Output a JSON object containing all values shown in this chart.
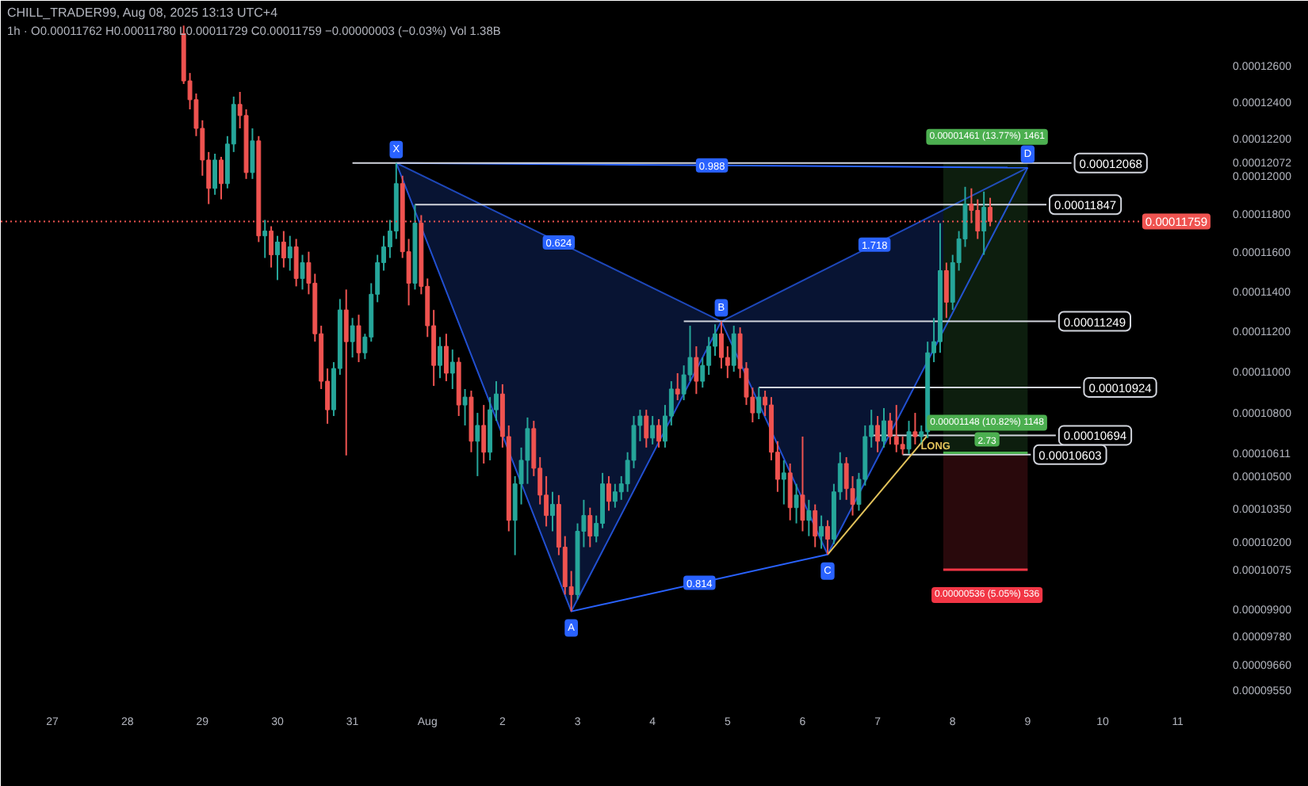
{
  "chart_data": {
    "type": "candlestick",
    "title": "CHILL_TRADER99, Aug 08, 2025 13:13 UTC+4",
    "subtitle": "1h · O0.00011762 H0.00011780 L0.00011729 C0.00011759 −0.00000003 (−0.03%) Vol 1.38B",
    "x": [
      "2025-07-28T18:00",
      "2025-07-28T20:00",
      "2025-07-28T22:00",
      "2025-07-29T00:00",
      "2025-07-29T02:00",
      "2025-07-29T04:00",
      "2025-07-29T06:00",
      "2025-07-29T08:00",
      "2025-07-29T10:00",
      "2025-07-29T12:00",
      "2025-07-29T14:00",
      "2025-07-29T16:00",
      "2025-07-29T18:00",
      "2025-07-29T20:00",
      "2025-07-29T22:00",
      "2025-07-30T00:00",
      "2025-07-30T02:00",
      "2025-07-30T04:00",
      "2025-07-30T06:00",
      "2025-07-30T08:00",
      "2025-07-30T10:00",
      "2025-07-30T12:00",
      "2025-07-30T14:00",
      "2025-07-30T16:00",
      "2025-07-30T18:00",
      "2025-07-30T20:00",
      "2025-07-30T22:00",
      "2025-07-31T00:00",
      "2025-07-31T02:00",
      "2025-07-31T04:00",
      "2025-07-31T06:00",
      "2025-07-31T08:00",
      "2025-07-31T10:00",
      "2025-07-31T12:00",
      "2025-07-31T14:00",
      "2025-07-31T16:00",
      "2025-07-31T18:00",
      "2025-07-31T20:00",
      "2025-07-31T22:00",
      "2025-08-01T00:00",
      "2025-08-01T02:00",
      "2025-08-01T04:00",
      "2025-08-01T06:00",
      "2025-08-01T08:00",
      "2025-08-01T10:00",
      "2025-08-01T12:00",
      "2025-08-01T14:00",
      "2025-08-01T16:00",
      "2025-08-01T18:00",
      "2025-08-01T20:00",
      "2025-08-01T22:00",
      "2025-08-02T00:00",
      "2025-08-02T02:00",
      "2025-08-02T04:00",
      "2025-08-02T06:00",
      "2025-08-02T08:00",
      "2025-08-02T10:00",
      "2025-08-02T12:00",
      "2025-08-02T14:00",
      "2025-08-02T16:00",
      "2025-08-02T18:00",
      "2025-08-02T20:00",
      "2025-08-02T22:00",
      "2025-08-03T00:00",
      "2025-08-03T02:00",
      "2025-08-03T04:00",
      "2025-08-03T06:00",
      "2025-08-03T08:00",
      "2025-08-03T10:00",
      "2025-08-03T12:00",
      "2025-08-03T14:00",
      "2025-08-03T16:00",
      "2025-08-03T18:00",
      "2025-08-03T20:00",
      "2025-08-03T22:00",
      "2025-08-04T00:00",
      "2025-08-04T02:00",
      "2025-08-04T04:00",
      "2025-08-04T06:00",
      "2025-08-04T08:00",
      "2025-08-04T10:00",
      "2025-08-04T12:00",
      "2025-08-04T14:00",
      "2025-08-04T16:00",
      "2025-08-04T18:00",
      "2025-08-04T20:00",
      "2025-08-04T22:00",
      "2025-08-05T00:00",
      "2025-08-05T02:00",
      "2025-08-05T04:00",
      "2025-08-05T06:00",
      "2025-08-05T08:00",
      "2025-08-05T10:00",
      "2025-08-05T12:00",
      "2025-08-05T14:00",
      "2025-08-05T16:00",
      "2025-08-05T18:00",
      "2025-08-05T20:00",
      "2025-08-05T22:00",
      "2025-08-06T00:00",
      "2025-08-06T02:00",
      "2025-08-06T04:00",
      "2025-08-06T06:00",
      "2025-08-06T08:00",
      "2025-08-06T10:00",
      "2025-08-06T12:00",
      "2025-08-06T14:00",
      "2025-08-06T16:00",
      "2025-08-06T18:00",
      "2025-08-06T20:00",
      "2025-08-06T22:00",
      "2025-08-07T00:00",
      "2025-08-07T02:00",
      "2025-08-07T04:00",
      "2025-08-07T06:00",
      "2025-08-07T08:00",
      "2025-08-07T10:00",
      "2025-08-07T12:00",
      "2025-08-07T14:00",
      "2025-08-07T16:00",
      "2025-08-07T18:00",
      "2025-08-07T20:00",
      "2025-08-07T22:00",
      "2025-08-08T00:00",
      "2025-08-08T02:00",
      "2025-08-08T04:00",
      "2025-08-08T06:00",
      "2025-08-08T08:00",
      "2025-08-08T10:00",
      "2025-08-08T12:00"
    ],
    "ohlc": [
      [
        0.00012782,
        0.00012827,
        0.00012499,
        0.00012516
      ],
      [
        0.00012516,
        0.0001256,
        0.00012359,
        0.00012412
      ],
      [
        0.00012412,
        0.00012446,
        0.00012213,
        0.00012255
      ],
      [
        0.00012255,
        0.00012299,
        0.00012,
        0.00012084
      ],
      [
        0.00012084,
        0.00012127,
        0.0001185,
        0.00011933
      ],
      [
        0.00011933,
        0.00012118,
        0.00011899,
        0.00012084
      ],
      [
        0.00012084,
        0.00012101,
        0.00011875,
        0.00011958
      ],
      [
        0.00011958,
        0.00012213,
        0.00011933,
        0.0001217
      ],
      [
        0.0001217,
        0.00012429,
        0.00012127,
        0.00012386
      ],
      [
        0.00012386,
        0.00012455,
        0.00012255,
        0.00012325
      ],
      [
        0.00012325,
        0.00012359,
        0.00011983,
        0.00012017
      ],
      [
        0.00012017,
        0.00012255,
        0.00011983,
        0.00012187
      ],
      [
        0.00012187,
        0.00012213,
        0.00011652,
        0.00011684
      ],
      [
        0.00011684,
        0.00011767,
        0.0001157,
        0.00011709
      ],
      [
        0.00011709,
        0.00011734,
        0.00011521,
        0.00011586
      ],
      [
        0.00011586,
        0.00011684,
        0.00011457,
        0.00011652
      ],
      [
        0.00011652,
        0.00011709,
        0.00011521,
        0.0001157
      ],
      [
        0.0001157,
        0.00011684,
        0.00011505,
        0.00011627
      ],
      [
        0.00011627,
        0.00011668,
        0.00011425,
        0.00011465
      ],
      [
        0.00011465,
        0.00011586,
        0.00011409,
        0.00011546
      ],
      [
        0.00011546,
        0.00011602,
        0.00011385,
        0.00011441
      ],
      [
        0.00011441,
        0.00011489,
        0.00011148,
        0.00011187
      ],
      [
        0.00011187,
        0.00011227,
        0.00010916,
        0.00010954
      ],
      [
        0.00010954,
        0.00011016,
        0.00010749,
        0.00010816
      ],
      [
        0.00010816,
        0.00011047,
        0.00010786,
        0.00011016
      ],
      [
        0.00011016,
        0.00011361,
        0.00010985,
        0.00011306
      ],
      [
        0.00011306,
        0.00011409,
        0.00010599,
        0.00011148
      ],
      [
        0.00011148,
        0.00011266,
        0.0001107,
        0.00011227
      ],
      [
        0.00011227,
        0.00011282,
        0.00011047,
        0.00011093
      ],
      [
        0.00011093,
        0.00011187,
        0.00011062,
        0.00011171
      ],
      [
        0.00011171,
        0.00011441,
        0.00011148,
        0.00011385
      ],
      [
        0.00011385,
        0.00011586,
        0.00011345,
        0.00011546
      ],
      [
        0.00011546,
        0.00011684,
        0.00011505,
        0.00011627
      ],
      [
        0.00011627,
        0.00011767,
        0.0001157,
        0.00011709
      ],
      [
        0.00011709,
        0.00012068,
        0.00011668,
        0.00011958
      ],
      [
        0.00011958,
        0.00012,
        0.0001157,
        0.00011602
      ],
      [
        0.00011602,
        0.00011668,
        0.00011329,
        0.00011441
      ],
      [
        0.00011441,
        0.00011847,
        0.00011409,
        0.0001175
      ],
      [
        0.0001175,
        0.00011792,
        0.00011385,
        0.00011425
      ],
      [
        0.00011425,
        0.00011465,
        0.00011171,
        0.00011227
      ],
      [
        0.00011227,
        0.00011306,
        0.00010931,
        0.00011031
      ],
      [
        0.00011031,
        0.00011171,
        0.00010969,
        0.00011125
      ],
      [
        0.00011125,
        0.00011187,
        0.00010954,
        0.00010993
      ],
      [
        0.00010993,
        0.00011109,
        0.00010916,
        0.00011047
      ],
      [
        0.00011047,
        0.0001107,
        0.00010786,
        0.00010839
      ],
      [
        0.00010839,
        0.00010916,
        0.00010741,
        0.00010877
      ],
      [
        0.00010877,
        0.00010908,
        0.00010614,
        0.00010666
      ],
      [
        0.00010666,
        0.00010801,
        0.00010502,
        0.00010741
      ],
      [
        0.00010741,
        0.00010839,
        0.00010561,
        0.00010614
      ],
      [
        0.00010614,
        0.00010877,
        0.00010576,
        0.00010816
      ],
      [
        0.00010816,
        0.00010954,
        0.00010763,
        0.00010892
      ],
      [
        0.00010892,
        0.00010939,
        0.00010636,
        0.00010688
      ],
      [
        0.00010688,
        0.00010741,
        0.00010248,
        0.00010298
      ],
      [
        0.00010298,
        0.00010502,
        0.0001014,
        0.00010466
      ],
      [
        0.00010466,
        0.00010636,
        0.00010371,
        0.00010576
      ],
      [
        0.00010576,
        0.00010779,
        0.00010466,
        0.00010726
      ],
      [
        0.00010726,
        0.00010763,
        0.00010502,
        0.00010539
      ],
      [
        0.00010539,
        0.00010591,
        0.00010371,
        0.00010414
      ],
      [
        0.00010414,
        0.00010502,
        0.0001027,
        0.0001032
      ],
      [
        0.0001032,
        0.00010429,
        0.00010248,
        0.00010371
      ],
      [
        0.00010371,
        0.00010414,
        0.0001014,
        0.00010176
      ],
      [
        0.00010176,
        0.00010226,
        9.964e-05,
        9.999e-05
      ],
      [
        9.999e-05,
        0.00010069,
        9.89e-05,
        9.964e-05
      ],
      [
        9.964e-05,
        0.00010284,
        9.943e-05,
        0.00010248
      ],
      [
        0.00010248,
        0.00010392,
        0.00010176,
        0.0001032
      ],
      [
        0.0001032,
        0.00010356,
        0.00010176,
        0.00010226
      ],
      [
        0.00010226,
        0.0001032,
        0.00010198,
        0.00010284
      ],
      [
        0.00010284,
        0.00010517,
        0.00010262,
        0.00010466
      ],
      [
        0.00010466,
        0.00010502,
        0.00010342,
        0.00010385
      ],
      [
        0.00010385,
        0.00010466,
        0.00010356,
        0.00010429
      ],
      [
        0.00010429,
        0.00010502,
        0.00010392,
        0.00010466
      ],
      [
        0.00010466,
        0.00010614,
        0.00010429,
        0.00010576
      ],
      [
        0.00010576,
        0.00010786,
        0.00010539,
        0.00010741
      ],
      [
        0.00010741,
        0.00010816,
        0.00010666,
        0.00010786
      ],
      [
        0.00010786,
        0.00010816,
        0.00010636,
        0.00010681
      ],
      [
        0.00010681,
        0.00010786,
        0.00010651,
        0.00010741
      ],
      [
        0.00010741,
        0.00010771,
        0.00010636,
        0.00010666
      ],
      [
        0.00010666,
        0.00010839,
        0.00010636,
        0.00010786
      ],
      [
        0.00010786,
        0.00010954,
        0.00010741,
        0.00010916
      ],
      [
        0.00010916,
        0.00010993,
        0.00010862,
        0.00010892
      ],
      [
        0.00010892,
        0.00011031,
        0.00010862,
        0.00010985
      ],
      [
        0.00010985,
        0.00011227,
        0.00010954,
        0.0001107
      ],
      [
        0.0001107,
        0.00011125,
        0.00010892,
        0.00010954
      ],
      [
        0.00010954,
        0.0001107,
        0.00010923,
        0.00011031
      ],
      [
        0.00011031,
        0.00011171,
        0.00010985,
        0.00011125
      ],
      [
        0.00011125,
        0.00011234,
        0.00011078,
        0.00011187
      ],
      [
        0.00011187,
        0.00011249,
        0.00011016,
        0.0001107
      ],
      [
        0.0001107,
        0.00011125,
        0.00010969,
        0.00011031
      ],
      [
        0.00011031,
        0.00011227,
        0.00011,
        0.00011187
      ],
      [
        0.00011187,
        0.00011219,
        0.00010969,
        0.00011016
      ],
      [
        0.00011016,
        0.00011047,
        0.00010839,
        0.00010877
      ],
      [
        0.00010877,
        0.00010923,
        0.00010756,
        0.00010801
      ],
      [
        0.00010801,
        0.00010924,
        0.00010771,
        0.00010877
      ],
      [
        0.00010877,
        0.00010908,
        0.00010786,
        0.00010839
      ],
      [
        0.00010839,
        0.00010877,
        0.00010576,
        0.00010614
      ],
      [
        0.00010614,
        0.00010666,
        0.00010429,
        0.00010487
      ],
      [
        0.00010487,
        0.00010576,
        0.00010371,
        0.00010517
      ],
      [
        0.00010517,
        0.00010561,
        0.00010298,
        0.00010356
      ],
      [
        0.00010356,
        0.00010466,
        0.00010284,
        0.00010414
      ],
      [
        0.00010414,
        0.00010688,
        0.00010248,
        0.00010298
      ],
      [
        0.00010298,
        0.00010392,
        0.00010226,
        0.00010342
      ],
      [
        0.00010342,
        0.00010371,
        0.00010176,
        0.00010226
      ],
      [
        0.00010226,
        0.0001032,
        0.00010169,
        0.0001027
      ],
      [
        0.0001027,
        0.00010298,
        0.00010143,
        0.00010212
      ],
      [
        0.00010212,
        0.00010466,
        0.0001019,
        0.00010429
      ],
      [
        0.00010429,
        0.00010614,
        0.00010392,
        0.00010561
      ],
      [
        0.00010561,
        0.00010591,
        0.00010392,
        0.00010444
      ],
      [
        0.00010444,
        0.00010502,
        0.0001032,
        0.00010371
      ],
      [
        0.00010371,
        0.00010517,
        0.00010342,
        0.00010487
      ],
      [
        0.00010487,
        0.00010741,
        0.00010458,
        0.00010688
      ],
      [
        0.00010688,
        0.00010816,
        0.00010636,
        0.00010741
      ],
      [
        0.00010741,
        0.00010786,
        0.00010614,
        0.00010666
      ],
      [
        0.00010666,
        0.00010824,
        0.00010636,
        0.00010763
      ],
      [
        0.00010763,
        0.00010801,
        0.00010651,
        0.00010688
      ],
      [
        0.00010688,
        0.00010839,
        0.00010614,
        0.00010651
      ],
      [
        0.00010651,
        0.00010688,
        0.00010603,
        0.00010629
      ],
      [
        0.00010629,
        0.00010763,
        0.00010606,
        0.00010711
      ],
      [
        0.00010711,
        0.00010801,
        0.00010651,
        0.00010688
      ],
      [
        0.00010688,
        0.00010741,
        0.00010651,
        0.00010711
      ],
      [
        0.00010711,
        0.00011148,
        0.00010681,
        0.00011093
      ],
      [
        0.00011093,
        0.00011266,
        0.00011047,
        0.00011148
      ],
      [
        0.00011148,
        0.0001175,
        0.00011093,
        0.00011505
      ],
      [
        0.00011505,
        0.00011546,
        0.00011266,
        0.00011345
      ],
      [
        0.00011345,
        0.00011586,
        0.00011306,
        0.00011546
      ],
      [
        0.00011546,
        0.00011709,
        0.00011505,
        0.00011668
      ],
      [
        0.00011668,
        0.00011941,
        0.00011627,
        0.0001185
      ],
      [
        0.0001185,
        0.00011933,
        0.0001175,
        0.00011817
      ],
      [
        0.00011817,
        0.00011875,
        0.00011668,
        0.00011709
      ],
      [
        0.00011709,
        0.00011916,
        0.00011586,
        0.00011833
      ],
      [
        0.00011833,
        0.00011883,
        0.00011734,
        0.00011759
      ]
    ],
    "colors": [
      "#ef5350",
      "#ef5350",
      "#ef5350",
      "#ef5350",
      "#ef5350",
      "#26a69a",
      "#ef5350",
      "#26a69a",
      "#26a69a",
      "#ef5350",
      "#ef5350",
      "#26a69a",
      "#ef5350",
      "#26a69a",
      "#ef5350",
      "#26a69a",
      "#ef5350",
      "#26a69a",
      "#ef5350",
      "#26a69a",
      "#ef5350",
      "#ef5350",
      "#ef5350",
      "#ef5350",
      "#26a69a",
      "#26a69a",
      "#ef5350",
      "#26a69a",
      "#ef5350",
      "#26a69a",
      "#26a69a",
      "#26a69a",
      "#26a69a",
      "#26a69a",
      "#26a69a",
      "#ef5350",
      "#ef5350",
      "#26a69a",
      "#ef5350",
      "#ef5350",
      "#ef5350",
      "#26a69a",
      "#ef5350",
      "#26a69a",
      "#ef5350",
      "#26a69a",
      "#ef5350",
      "#26a69a",
      "#ef5350",
      "#26a69a",
      "#26a69a",
      "#ef5350",
      "#ef5350",
      "#26a69a",
      "#26a69a",
      "#26a69a",
      "#ef5350",
      "#ef5350",
      "#ef5350",
      "#26a69a",
      "#ef5350",
      "#ef5350",
      "#ef5350",
      "#26a69a",
      "#26a69a",
      "#ef5350",
      "#26a69a",
      "#26a69a",
      "#ef5350",
      "#26a69a",
      "#26a69a",
      "#26a69a",
      "#26a69a",
      "#26a69a",
      "#ef5350",
      "#26a69a",
      "#ef5350",
      "#26a69a",
      "#26a69a",
      "#ef5350",
      "#26a69a",
      "#26a69a",
      "#ef5350",
      "#26a69a",
      "#26a69a",
      "#26a69a",
      "#ef5350",
      "#ef5350",
      "#26a69a",
      "#ef5350",
      "#ef5350",
      "#ef5350",
      "#26a69a",
      "#ef5350",
      "#ef5350",
      "#ef5350",
      "#26a69a",
      "#ef5350",
      "#26a69a",
      "#ef5350",
      "#26a69a",
      "#ef5350",
      "#26a69a",
      "#ef5350",
      "#26a69a",
      "#26a69a",
      "#ef5350",
      "#ef5350",
      "#26a69a",
      "#26a69a",
      "#26a69a",
      "#ef5350",
      "#26a69a",
      "#ef5350",
      "#ef5350",
      "#ef5350",
      "#26a69a",
      "#ef5350",
      "#26a69a",
      "#26a69a",
      "#26a69a",
      "#26a69a",
      "#ef5350",
      "#26a69a",
      "#26a69a",
      "#26a69a",
      "#ef5350",
      "#ef5350",
      "#26a69a",
      "#ef5350"
    ],
    "xlim": [
      "2025-07-26T07:30",
      "2025-08-11T11:30"
    ],
    "xticks": [
      {
        "value": "2025-07-27",
        "label": "27"
      },
      {
        "value": "2025-07-28",
        "label": "28"
      },
      {
        "value": "2025-07-29",
        "label": "29"
      },
      {
        "value": "2025-07-30",
        "label": "30"
      },
      {
        "value": "2025-07-31",
        "label": "31"
      },
      {
        "value": "2025-08-01",
        "label": "Aug"
      },
      {
        "value": "2025-08-02",
        "label": "2"
      },
      {
        "value": "2025-08-03",
        "label": "3"
      },
      {
        "value": "2025-08-04",
        "label": "4"
      },
      {
        "value": "2025-08-05",
        "label": "5"
      },
      {
        "value": "2025-08-06",
        "label": "6"
      },
      {
        "value": "2025-08-07",
        "label": "7"
      },
      {
        "value": "2025-08-08",
        "label": "8"
      },
      {
        "value": "2025-08-09",
        "label": "9"
      },
      {
        "value": "2025-08-10",
        "label": "10"
      },
      {
        "value": "2025-08-11",
        "label": "11"
      }
    ],
    "ylim": [
      9.47e-05,
      0.0001286
    ],
    "yticks": [
      {
        "value": 0.000126,
        "label": "0.00012600"
      },
      {
        "value": 0.000124,
        "label": "0.00012400"
      },
      {
        "value": 0.000122,
        "label": "0.00012200"
      },
      {
        "value": 0.00012072,
        "label": "0.00012072"
      },
      {
        "value": 0.00012,
        "label": "0.00012000"
      },
      {
        "value": 0.000118,
        "label": "0.00011800"
      },
      {
        "value": 0.000116,
        "label": "0.00011600"
      },
      {
        "value": 0.000114,
        "label": "0.00011400"
      },
      {
        "value": 0.000112,
        "label": "0.00011200"
      },
      {
        "value": 0.00011,
        "label": "0.00011000"
      },
      {
        "value": 0.000108,
        "label": "0.00010800"
      },
      {
        "value": 0.00010611,
        "label": "0.00010611"
      },
      {
        "value": 0.000105,
        "label": "0.00010500"
      },
      {
        "value": 0.0001035,
        "label": "0.00010350"
      },
      {
        "value": 0.000102,
        "label": "0.00010200"
      },
      {
        "value": 0.00010075,
        "label": "0.00010075"
      },
      {
        "value": 9.9e-05,
        "label": "0.00009900"
      },
      {
        "value": 9.78e-05,
        "label": "0.00009780"
      },
      {
        "value": 9.66e-05,
        "label": "0.00009660"
      },
      {
        "value": 9.55e-05,
        "label": "0.00009550"
      }
    ],
    "log": true,
    "grid": false,
    "series": [
      {
        "type": "line",
        "color": "#2962ff",
        "x": [
          "2025-07-31T14:00",
          "2025-08-02T22:00",
          "2025-08-04T22:00",
          "2025-08-06T08:00",
          "2025-08-09T00:00"
        ],
        "values": [
          0.00012068,
          9.89e-05,
          0.00011249,
          0.00010143,
          0.00012043
        ],
        "lower": [
          0.00012068,
          9.89e-05,
          0.00011249,
          0.00010143,
          0.00012043
        ],
        "upper": [
          0.00012068,
          0.0001162,
          0.00011249,
          0.00011518,
          0.00012043
        ],
        "value_labels": [
          "X",
          "A",
          "B",
          "C",
          "D"
        ]
      },
      {
        "type": "line",
        "color": "#2962ff",
        "x": [
          "2025-08-02T22:00",
          "2025-08-06T08:00"
        ],
        "values": [
          9.89e-05,
          0.00010143
        ]
      },
      {
        "type": "line",
        "color": "#2962ff",
        "x": [
          "2025-07-31T14:00",
          "2025-08-09T00:00"
        ],
        "values": [
          0.00012068,
          0.00012043
        ]
      },
      {
        "type": "line",
        "color": "#d1d4dc",
        "x": [
          "2025-07-31T00:00",
          "2025-08-09T14:00"
        ],
        "values": [
          0.00012068,
          0.00012068
        ],
        "value_labels": [
          null,
          "0.00012068"
        ]
      },
      {
        "type": "line",
        "color": "#d1d4dc",
        "x": [
          "2025-07-31T20:00",
          "2025-08-09T06:00"
        ],
        "values": [
          0.00011847,
          0.00011847
        ],
        "value_labels": [
          null,
          "0.00011847"
        ]
      },
      {
        "type": "line",
        "color": "#d1d4dc",
        "x": [
          "2025-08-04T10:00",
          "2025-08-09T09:00"
        ],
        "values": [
          0.00011249,
          0.00011249
        ],
        "value_labels": [
          null,
          "0.00011249"
        ]
      },
      {
        "type": "line",
        "color": "#d1d4dc",
        "x": [
          "2025-08-05T10:00",
          "2025-08-09T17:00"
        ],
        "values": [
          0.00010924,
          0.00010924
        ],
        "value_labels": [
          null,
          "0.00010924"
        ]
      },
      {
        "type": "line",
        "color": "#d1d4dc",
        "x": [
          "2025-08-06T22:00",
          "2025-08-09T09:00"
        ],
        "values": [
          0.00010694,
          0.00010694
        ],
        "value_labels": [
          null,
          "0.00010694"
        ]
      },
      {
        "type": "line",
        "color": "#d1d4dc",
        "x": [
          "2025-08-07T08:00",
          "2025-08-09T01:00"
        ],
        "values": [
          0.00010603,
          0.00010603
        ],
        "value_labels": [
          null,
          "0.00010603"
        ]
      },
      {
        "type": "line",
        "color": "#e3c35b",
        "x": [
          "2025-08-06T08:00",
          "2025-08-07T16:00"
        ],
        "values": [
          0.00010143,
          0.00010694
        ],
        "value_labels": [
          null,
          "LONG"
        ]
      },
      {
        "type": "line",
        "color": "#4caf50",
        "x": [
          "2025-08-07T21:00",
          "2025-08-09T00:00"
        ],
        "values": [
          0.00010611,
          0.00010611
        ],
        "lower": [
          0.00010611,
          0.00010611
        ],
        "upper": [
          0.00012072,
          0.00012072
        ]
      },
      {
        "type": "line",
        "color": "#f23645",
        "x": [
          "2025-08-07T21:00",
          "2025-08-09T00:00"
        ],
        "values": [
          0.00010075,
          0.00010075
        ],
        "lower": [
          0.00010075,
          0.00010075
        ],
        "upper": [
          0.00010611,
          0.00010611
        ]
      }
    ],
    "ref_lines": [
      {
        "axis": "y",
        "value": 0.00011759,
        "label": "0.00011759",
        "color": "#ef5350",
        "line_style": "dotted"
      }
    ],
    "annotations": [
      {
        "text": "0.988",
        "x": "2025-08-04T19:00",
        "y": 0.00012055
      },
      {
        "text": "0.624",
        "x": "2025-08-02T18:00",
        "y": 0.0001165
      },
      {
        "text": "0.814",
        "x": "2025-08-04T15:00",
        "y": 0.00010016
      },
      {
        "text": "1.718",
        "x": "2025-08-06T23:00",
        "y": 0.00011639
      },
      {
        "text": "0.00001461 (13.77%) 1461",
        "x": "2025-08-08T11:00",
        "y": 0.00012072
      },
      {
        "text": "0.00001148 (10.82%) 1148",
        "x": "2025-08-08T11:00",
        "y": 0.00010611
      },
      {
        "text": "2.73",
        "x": "2025-08-08T11:00",
        "y": 0.00010611
      },
      {
        "text": "0.00000536 (5.05%) 536",
        "x": "2025-08-08T11:00",
        "y": 0.00010075
      }
    ]
  }
}
